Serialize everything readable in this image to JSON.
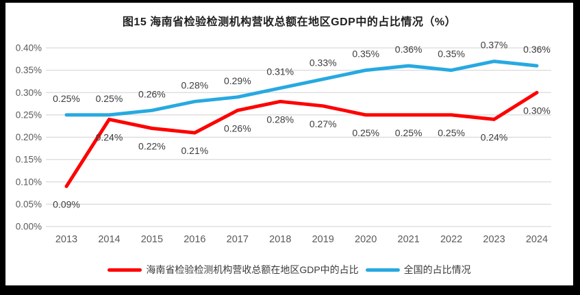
{
  "frame": {
    "border_color": "#000000",
    "background_color": "#FFFFFF"
  },
  "title": "图15 海南省检验检测机构营收总额在地区GDP中的占比情况（%）",
  "chart_data": {
    "type": "line",
    "title": "图15 海南省检验检测机构营收总额在地区GDP中的占比情况（%）",
    "categories": [
      "2013",
      "2014",
      "2015",
      "2016",
      "2017",
      "2018",
      "2019",
      "2020",
      "2021",
      "2022",
      "2023",
      "2024"
    ],
    "series": [
      {
        "name": "海南省检验检测机构营收总额在地区GDP中的占比",
        "color": "#FE0000",
        "values": [
          0.09,
          0.24,
          0.22,
          0.21,
          0.26,
          0.28,
          0.27,
          0.25,
          0.25,
          0.25,
          0.24,
          0.3
        ],
        "data_labels": [
          "0.09%",
          "0.24%",
          "0.22%",
          "0.21%",
          "0.26%",
          "0.28%",
          "0.27%",
          "0.25%",
          "0.25%",
          "0.25%",
          "0.24%",
          "0.30%"
        ],
        "label_position": "below"
      },
      {
        "name": "全国的占比情况",
        "color": "#27A9E1",
        "values": [
          0.25,
          0.25,
          0.26,
          0.28,
          0.29,
          0.31,
          0.33,
          0.35,
          0.36,
          0.35,
          0.37,
          0.36
        ],
        "data_labels": [
          "0.25%",
          "0.25%",
          "0.26%",
          "0.28%",
          "0.29%",
          "0.31%",
          "0.33%",
          "0.35%",
          "0.36%",
          "0.35%",
          "0.37%",
          "0.36%"
        ],
        "label_position": "above"
      }
    ],
    "xlabel": "",
    "ylabel": "",
    "ylim": [
      0,
      0.4
    ],
    "y_tick_labels": [
      "0.00%",
      "0.05%",
      "0.10%",
      "0.15%",
      "0.20%",
      "0.25%",
      "0.30%",
      "0.35%",
      "0.40%"
    ],
    "grid": true,
    "legend_position": "bottom"
  },
  "legend": {
    "items": [
      {
        "label": "海南省检验检测机构营收总额在地区GDP中的占比",
        "color": "#FE0000"
      },
      {
        "label": "全国的占比情况",
        "color": "#27A9E1"
      }
    ]
  },
  "style_colors": {
    "gridline": "#D9D9D9",
    "axis_text": "#595959",
    "data_label_text": "#3B3B3B",
    "title_text": "#1F1F1F"
  }
}
